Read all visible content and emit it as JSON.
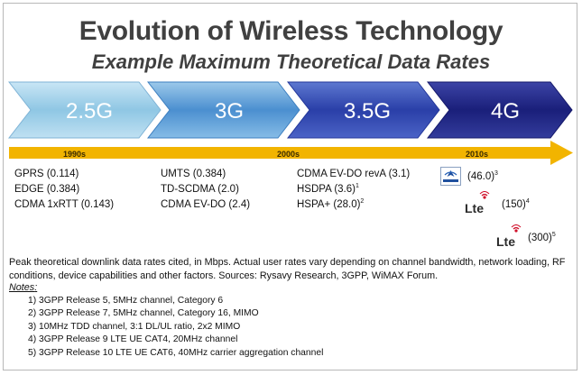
{
  "title": "Evolution of Wireless Technology",
  "subtitle": "Example Maximum Theoretical Data Rates",
  "generations": [
    {
      "label": "2.5G",
      "color": "#8fc7e4"
    },
    {
      "label": "3G",
      "color": "#4b8fd0"
    },
    {
      "label": "3.5G",
      "color": "#2a3fa8"
    },
    {
      "label": "4G",
      "color": "#1a1f7a"
    }
  ],
  "timeline_color": "#f2b400",
  "decades": [
    "1990s",
    "2000s",
    "2010s"
  ],
  "columns": [
    {
      "items": [
        {
          "text": "GPRS (0.114)"
        },
        {
          "text": "EDGE (0.384)"
        },
        {
          "text": "CDMA 1xRTT (0.143)"
        }
      ]
    },
    {
      "items": [
        {
          "text": "UMTS (0.384)"
        },
        {
          "text": "TD-SCDMA (2.0)"
        },
        {
          "text": "CDMA EV-DO (2.4)"
        }
      ]
    },
    {
      "items": [
        {
          "text": "CDMA EV-DO revA (3.1)"
        },
        {
          "text": "HSDPA (3.6)",
          "sup": "1"
        },
        {
          "text": "HSPA+ (28.0)",
          "sup": "2"
        }
      ]
    }
  ],
  "fourg_items": [
    {
      "icon": "wimax-icon",
      "text": "(46.0)",
      "sup": "3"
    },
    {
      "icon": "lte-icon",
      "logo": "Lte",
      "text": "(150)",
      "sup": "4"
    },
    {
      "icon": "lte-icon",
      "logo": "Lte",
      "text": "(300)",
      "sup": "5"
    }
  ],
  "footer_text": "Peak theoretical downlink data rates cited, in Mbps.  Actual user rates vary depending on channel bandwidth, network loading, RF conditions, device capabilities and other factors. Sources: Rysavy Research, 3GPP, WiMAX Forum.",
  "notes_heading": "Notes",
  "notes": [
    "1)  3GPP Release 5, 5MHz channel, Category 6",
    "2)  3GPP Release 7, 5MHz channel, Category 16, MIMO",
    "3)  10MHz TDD channel, 3:1 DL/UL ratio, 2x2 MIMO",
    "4)  3GPP Release  9 LTE UE CAT4, 20MHz channel",
    "5)  3GPP Release 10 LTE UE CAT6, 40MHz carrier aggregation channel"
  ]
}
